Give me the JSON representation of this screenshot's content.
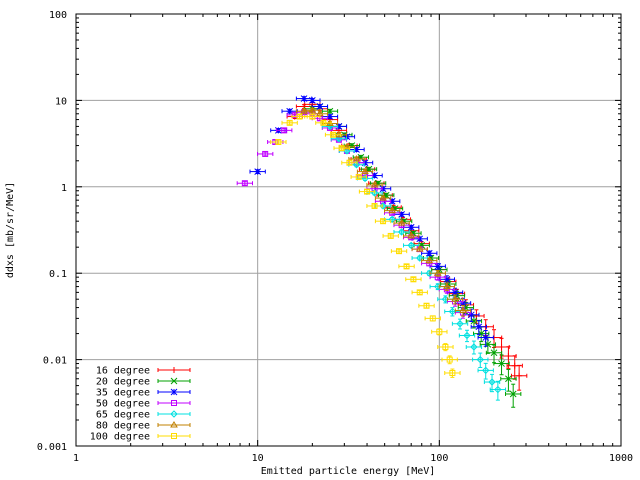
{
  "chart_data": {
    "type": "scatter",
    "title": "",
    "xlabel": "Emitted particle energy [MeV]",
    "ylabel": "ddxs [mb/sr/MeV]",
    "x_scale": "log",
    "y_scale": "log",
    "xlim": [
      1,
      1000
    ],
    "ylim": [
      0.001,
      100
    ],
    "x_ticks": [
      {
        "value": 1,
        "label": "1"
      },
      {
        "value": 10,
        "label": "10"
      },
      {
        "value": 100,
        "label": "100"
      },
      {
        "value": 1000,
        "label": "1000"
      }
    ],
    "y_ticks": [
      {
        "value": 0.001,
        "label": "0.001"
      },
      {
        "value": 0.01,
        "label": "0.01"
      },
      {
        "value": 0.1,
        "label": "0.1"
      },
      {
        "value": 1,
        "label": "1"
      },
      {
        "value": 10,
        "label": "10"
      },
      {
        "value": 100,
        "label": "100"
      }
    ],
    "grid": true,
    "legend_position": "bottom-left",
    "series": [
      {
        "name": "16 degree",
        "color": "#ff0000",
        "marker": "plus",
        "points": [
          [
            16,
            6.5
          ],
          [
            18,
            8.5
          ],
          [
            20,
            9.0
          ],
          [
            22,
            8.0
          ],
          [
            25,
            6.0
          ],
          [
            28,
            4.5
          ],
          [
            32,
            3.0
          ],
          [
            36,
            2.1
          ],
          [
            40,
            1.6
          ],
          [
            45,
            1.1
          ],
          [
            50,
            0.8
          ],
          [
            56,
            0.58
          ],
          [
            63,
            0.42
          ],
          [
            70,
            0.31
          ],
          [
            80,
            0.22
          ],
          [
            90,
            0.15
          ],
          [
            100,
            0.11
          ],
          [
            112,
            0.08
          ],
          [
            125,
            0.058
          ],
          [
            140,
            0.043
          ],
          [
            160,
            0.032
          ],
          [
            180,
            0.024
          ],
          [
            200,
            0.018
          ],
          [
            220,
            0.014
          ],
          [
            240,
            0.011
          ],
          [
            260,
            0.0085
          ],
          [
            275,
            0.0065
          ]
        ]
      },
      {
        "name": "20 degree",
        "color": "#00a000",
        "marker": "cross",
        "points": [
          [
            20,
            8.0
          ],
          [
            22,
            8.5
          ],
          [
            25,
            7.5
          ],
          [
            28,
            5.0
          ],
          [
            30,
            4.0
          ],
          [
            33,
            3.0
          ],
          [
            37,
            2.2
          ],
          [
            41,
            1.6
          ],
          [
            46,
            1.1
          ],
          [
            51,
            0.8
          ],
          [
            57,
            0.56
          ],
          [
            64,
            0.4
          ],
          [
            72,
            0.29
          ],
          [
            80,
            0.21
          ],
          [
            90,
            0.15
          ],
          [
            100,
            0.11
          ],
          [
            112,
            0.075
          ],
          [
            125,
            0.055
          ],
          [
            140,
            0.04
          ],
          [
            155,
            0.028
          ],
          [
            170,
            0.02
          ],
          [
            185,
            0.015
          ],
          [
            200,
            0.012
          ],
          [
            220,
            0.009
          ],
          [
            240,
            0.006
          ],
          [
            255,
            0.004
          ]
        ]
      },
      {
        "name": "35 degree",
        "color": "#0000ff",
        "marker": "star",
        "points": [
          [
            10,
            1.5
          ],
          [
            13,
            4.5
          ],
          [
            15,
            7.5
          ],
          [
            18,
            10.5
          ],
          [
            20,
            10.0
          ],
          [
            22,
            8.5
          ],
          [
            25,
            6.5
          ],
          [
            28,
            5.0
          ],
          [
            31,
            3.8
          ],
          [
            35,
            2.7
          ],
          [
            39,
            1.9
          ],
          [
            44,
            1.35
          ],
          [
            49,
            0.95
          ],
          [
            55,
            0.68
          ],
          [
            62,
            0.48
          ],
          [
            70,
            0.34
          ],
          [
            78,
            0.25
          ],
          [
            88,
            0.17
          ],
          [
            98,
            0.12
          ],
          [
            110,
            0.085
          ],
          [
            122,
            0.06
          ],
          [
            135,
            0.045
          ],
          [
            150,
            0.033
          ],
          [
            165,
            0.024
          ],
          [
            180,
            0.018
          ]
        ]
      },
      {
        "name": "50 degree",
        "color": "#c000ff",
        "marker": "square",
        "points": [
          [
            8.5,
            1.1
          ],
          [
            11,
            2.4
          ],
          [
            12.5,
            3.3
          ],
          [
            14,
            4.5
          ],
          [
            16,
            6.8
          ],
          [
            18,
            7.3
          ],
          [
            20,
            7.0
          ],
          [
            22,
            6.2
          ],
          [
            25,
            4.8
          ],
          [
            28,
            3.5
          ],
          [
            31,
            2.6
          ],
          [
            35,
            1.9
          ],
          [
            39,
            1.35
          ],
          [
            44,
            0.95
          ],
          [
            49,
            0.68
          ],
          [
            55,
            0.5
          ],
          [
            62,
            0.36
          ],
          [
            70,
            0.26
          ],
          [
            78,
            0.19
          ],
          [
            88,
            0.13
          ],
          [
            98,
            0.09
          ],
          [
            110,
            0.065
          ],
          [
            122,
            0.047
          ],
          [
            135,
            0.035
          ]
        ]
      },
      {
        "name": "65 degree",
        "color": "#00e0e0",
        "marker": "diamond",
        "points": [
          [
            25,
            5.0
          ],
          [
            28,
            3.6
          ],
          [
            31,
            2.6
          ],
          [
            35,
            1.8
          ],
          [
            39,
            1.25
          ],
          [
            44,
            0.85
          ],
          [
            49,
            0.6
          ],
          [
            55,
            0.42
          ],
          [
            62,
            0.3
          ],
          [
            70,
            0.21
          ],
          [
            78,
            0.15
          ],
          [
            88,
            0.1
          ],
          [
            98,
            0.07
          ],
          [
            108,
            0.05
          ],
          [
            118,
            0.036
          ],
          [
            130,
            0.026
          ],
          [
            142,
            0.019
          ],
          [
            155,
            0.014
          ],
          [
            168,
            0.01
          ],
          [
            180,
            0.0075
          ],
          [
            195,
            0.0055
          ],
          [
            210,
            0.0045
          ]
        ]
      },
      {
        "name": "80 degree",
        "color": "#c08000",
        "marker": "triangle",
        "points": [
          [
            18,
            7.5
          ],
          [
            20,
            7.7
          ],
          [
            22,
            7.0
          ],
          [
            25,
            5.4
          ],
          [
            28,
            4.0
          ],
          [
            31,
            2.9
          ],
          [
            35,
            2.1
          ],
          [
            39,
            1.5
          ],
          [
            44,
            1.05
          ],
          [
            49,
            0.74
          ],
          [
            55,
            0.53
          ],
          [
            62,
            0.38
          ],
          [
            70,
            0.27
          ],
          [
            78,
            0.19
          ],
          [
            88,
            0.14
          ],
          [
            98,
            0.1
          ],
          [
            110,
            0.07
          ],
          [
            122,
            0.05
          ],
          [
            135,
            0.037
          ]
        ]
      },
      {
        "name": "100 degree",
        "color": "#ffdd00",
        "marker": "square",
        "points": [
          [
            13,
            3.3
          ],
          [
            15,
            5.5
          ],
          [
            17,
            6.5
          ],
          [
            20,
            6.5
          ],
          [
            23,
            5.5
          ],
          [
            26,
            4.0
          ],
          [
            29,
            2.8
          ],
          [
            32,
            1.9
          ],
          [
            36,
            1.3
          ],
          [
            40,
            0.88
          ],
          [
            44,
            0.6
          ],
          [
            49,
            0.4
          ],
          [
            54,
            0.27
          ],
          [
            60,
            0.18
          ],
          [
            66,
            0.12
          ],
          [
            72,
            0.085
          ],
          [
            78,
            0.06
          ],
          [
            85,
            0.042
          ],
          [
            92,
            0.03
          ],
          [
            100,
            0.021
          ],
          [
            108,
            0.014
          ],
          [
            114,
            0.01
          ],
          [
            118,
            0.007
          ]
        ]
      }
    ]
  }
}
